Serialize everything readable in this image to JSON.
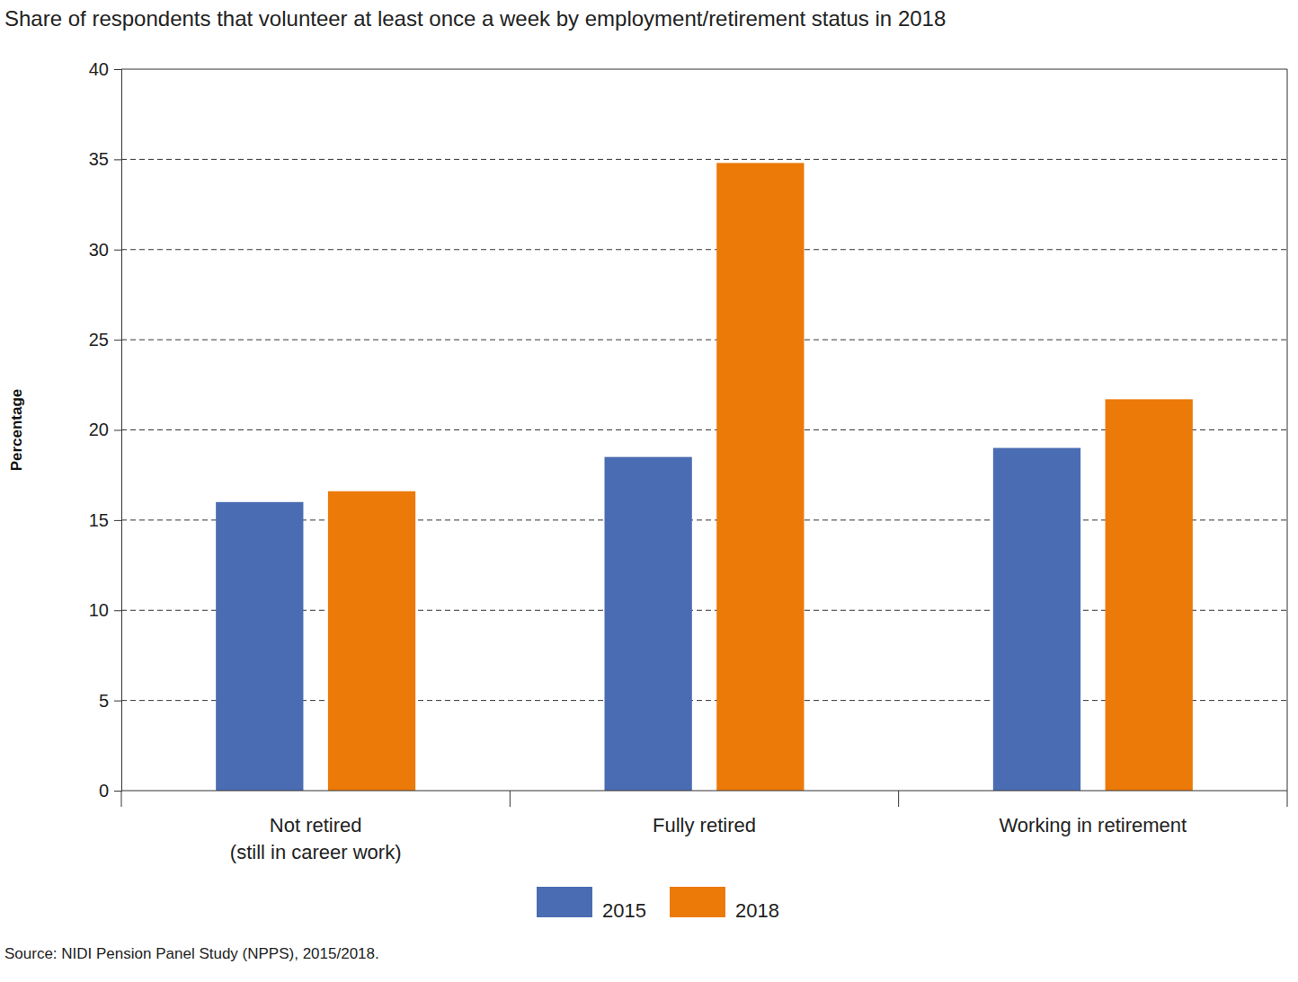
{
  "chart_data": {
    "type": "bar",
    "title": "Share of respondents that volunteer at least once a week by employment/retirement status in 2018",
    "y_label": "Percentage",
    "source": "Source: NIDI Pension Panel Study (NPPS), 2015/2018.",
    "categories": [
      "Not retired\n(still in career work)",
      "Fully retired",
      "Working in retirement"
    ],
    "series": [
      {
        "name": "2015",
        "color": "#4a6cb3",
        "values": [
          16.0,
          18.5,
          19.0
        ]
      },
      {
        "name": "2018",
        "color": "#ec7a08",
        "values": [
          16.6,
          34.8,
          21.7
        ]
      }
    ],
    "ylim": [
      0,
      40
    ],
    "yticks": [
      0,
      5,
      10,
      15,
      20,
      25,
      30,
      35,
      40
    ],
    "grid": true,
    "legend": "bottom"
  }
}
